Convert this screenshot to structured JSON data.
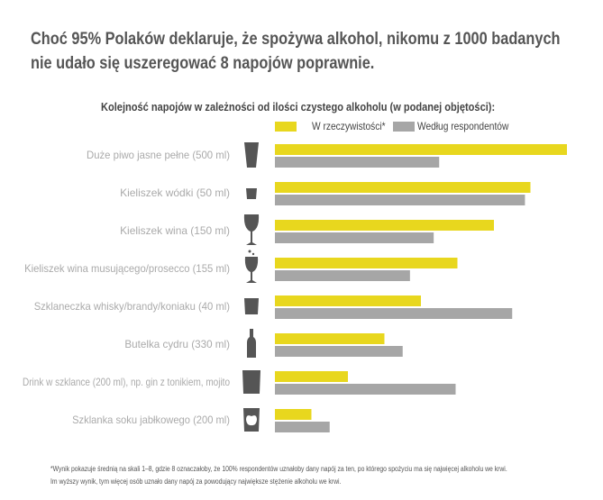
{
  "title_lines": [
    "Choć 95% Polaków deklaruje, że spożywa alkohol, nikomu z 1000 badanych",
    "nie udało się uszeregować 8 napojów poprawnie."
  ],
  "colors": {
    "actual": "#e8d71e",
    "respondents": "#a6a6a6",
    "label": "#aaaaaa",
    "icon": "#555555"
  },
  "chart_data": {
    "type": "bar",
    "orientation": "horizontal",
    "title": "Kolejność napojów w zależności od ilości czystego alkoholu (w podanej objętości):",
    "categories": [
      "Duże piwo jasne pełne (500 ml)",
      "Kieliszek wódki (50 ml)",
      "Kieliszek wina (150 ml)",
      "Kieliszek wina musującego/prosecco (155 ml)",
      "Szklaneczka whisky/brandy/koniaku (40 ml)",
      "Butelka cydru (330 ml)",
      "Drink w szklance (200 ml), np. gin z tonikiem, mojito",
      "Szklanka soku jabłkowego (200 ml)"
    ],
    "icons": [
      "beer-glass-icon",
      "shot-glass-icon",
      "wine-glass-icon",
      "sparkling-wine-glass-icon",
      "whisky-glass-icon",
      "cider-bottle-icon",
      "drink-glass-icon",
      "apple-juice-glass-icon"
    ],
    "series": [
      {
        "name": "W rzeczywistości*",
        "color": "#e8d71e",
        "values": [
          8,
          7,
          6,
          5,
          4,
          3,
          2,
          1
        ]
      },
      {
        "name": "Według respondentów",
        "color": "#a6a6a6",
        "values": [
          4.5,
          6.85,
          4.35,
          3.7,
          6.5,
          3.5,
          4.95,
          1.5
        ]
      }
    ],
    "xlim": [
      0,
      8
    ],
    "grid": false,
    "legend": "top"
  },
  "footnote_lines": [
    "*Wynik pokazuje średnią na skali 1–8, gdzie 8 oznaczałoby, że 100% respondentów uznałoby dany napój za ten, po którego spożyciu ma się najwięcej alkoholu we krwi.",
    "Im wyższy wynik, tym więcej osób uznało dany napój za powodujący największe stężenie alkoholu we krwi."
  ]
}
